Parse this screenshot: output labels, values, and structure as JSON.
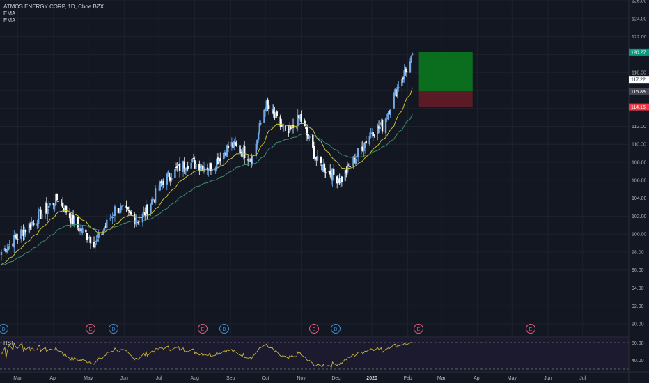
{
  "header": {
    "symbol_line": "ATMOS ENERGY CORP, 1D, Cboe BZX",
    "ema1_label": "EMA",
    "ema2_label": "EMA"
  },
  "price_scale": {
    "ticks": [
      "126.00",
      "124.00",
      "122.00",
      "120.00",
      "118.00",
      "116.00",
      "114.00",
      "112.00",
      "110.00",
      "108.00",
      "106.00",
      "104.00",
      "102.00",
      "100.00",
      "98.00",
      "96.00",
      "94.00",
      "92.00",
      "90.00"
    ],
    "badges": [
      {
        "value": 120.27,
        "label": "120.27",
        "bg": "#089981",
        "fg": "#ffffff"
      },
      {
        "value": 117.22,
        "label": "117.22",
        "bg": "#ffffff",
        "fg": "#131722"
      },
      {
        "value": 115.89,
        "label": "115.89",
        "bg": "#434651",
        "fg": "#ffffff"
      },
      {
        "value": 114.16,
        "label": "114.16",
        "bg": "#f23645",
        "fg": "#ffffff"
      }
    ]
  },
  "time_scale": {
    "labels": [
      "Mar",
      "Apr",
      "May",
      "Jun",
      "Jul",
      "Aug",
      "Sep",
      "Oct",
      "Nov",
      "Dec",
      "2020",
      "Feb",
      "Mar",
      "Apr",
      "May",
      "Jun",
      "Jul"
    ]
  },
  "events": [
    {
      "type": "D",
      "month": "Feb 2019"
    },
    {
      "type": "E",
      "month": "May 2019"
    },
    {
      "type": "D",
      "month": "May 2019"
    },
    {
      "type": "E",
      "month": "Aug 2019"
    },
    {
      "type": "D",
      "month": "Aug 2019"
    },
    {
      "type": "E",
      "month": "Nov 2019"
    },
    {
      "type": "D",
      "month": "Nov 2019"
    },
    {
      "type": "E",
      "month": "Feb 2020"
    },
    {
      "type": "E",
      "month": "May 2020"
    }
  ],
  "rsi": {
    "label": "RSI",
    "levels": [
      "80.00",
      "40.00"
    ]
  },
  "position": {
    "target": 120.27,
    "entry": 115.89,
    "stop": 114.16
  },
  "colors": {
    "up": "#6ea8e6",
    "down": "#ffffff",
    "ema_fast": "#c9c23a",
    "ema_slow": "#3a8f6b",
    "rsi_line": "#c9b43a",
    "profit": "#0b6e1f",
    "loss": "#5a1a26"
  },
  "chart_data": {
    "type": "candlestick",
    "title": "ATMOS ENERGY CORP, 1D, Cboe BZX",
    "ylim": [
      89,
      127
    ],
    "price_path": [
      {
        "date": "2019-02-15",
        "close": 98.0
      },
      {
        "date": "2019-03-15",
        "close": 101.5
      },
      {
        "date": "2019-04-05",
        "close": 104.0
      },
      {
        "date": "2019-04-20",
        "close": 101.0
      },
      {
        "date": "2019-05-08",
        "close": 99.0
      },
      {
        "date": "2019-05-25",
        "close": 103.0
      },
      {
        "date": "2019-06-15",
        "close": 101.5
      },
      {
        "date": "2019-07-05",
        "close": 106.0
      },
      {
        "date": "2019-07-25",
        "close": 108.0
      },
      {
        "date": "2019-08-15",
        "close": 107.5
      },
      {
        "date": "2019-09-01",
        "close": 110.0
      },
      {
        "date": "2019-09-20",
        "close": 108.5
      },
      {
        "date": "2019-10-01",
        "close": 114.5
      },
      {
        "date": "2019-10-20",
        "close": 111.0
      },
      {
        "date": "2019-10-31",
        "close": 113.0
      },
      {
        "date": "2019-11-15",
        "close": 108.0
      },
      {
        "date": "2019-12-05",
        "close": 106.0
      },
      {
        "date": "2019-12-20",
        "close": 109.0
      },
      {
        "date": "2020-01-01",
        "close": 111.5
      },
      {
        "date": "2020-01-10",
        "close": 112.0
      },
      {
        "date": "2020-01-25",
        "close": 117.0
      },
      {
        "date": "2020-02-05",
        "close": 119.5
      }
    ],
    "position_tool": {
      "target": 120.27,
      "entry": 115.89,
      "stop": 114.16
    }
  }
}
